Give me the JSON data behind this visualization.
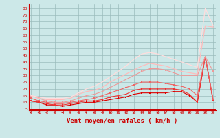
{
  "bg_color": "#cce8e8",
  "grid_color": "#9bbcbc",
  "xlabel": "Vent moyen/en rafales ( km/h )",
  "xlabel_color": "#cc0000",
  "xlabel_fontsize": 6.5,
  "ylim": [
    4,
    83
  ],
  "xlim": [
    0,
    23
  ],
  "series": [
    {
      "color": "#dd0000",
      "linewidth": 0.8,
      "marker": "s",
      "markersize": 1.5,
      "data": [
        11,
        10,
        8,
        8,
        7,
        8,
        9,
        10,
        10,
        11,
        12,
        13,
        14,
        16,
        17,
        17,
        17,
        17,
        18,
        18,
        15,
        10,
        44,
        11
      ]
    },
    {
      "color": "#ee3333",
      "linewidth": 0.8,
      "marker": "s",
      "markersize": 1.5,
      "data": [
        11,
        10,
        9,
        8,
        8,
        9,
        10,
        11,
        11,
        12,
        14,
        15,
        16,
        19,
        20,
        20,
        20,
        20,
        20,
        19,
        16,
        10,
        44,
        11
      ]
    },
    {
      "color": "#ee6666",
      "linewidth": 0.8,
      "marker": "s",
      "markersize": 1.5,
      "data": [
        13,
        11,
        10,
        9,
        9,
        10,
        11,
        12,
        13,
        15,
        17,
        19,
        21,
        23,
        25,
        25,
        25,
        24,
        23,
        22,
        20,
        15,
        44,
        12
      ]
    },
    {
      "color": "#ee9999",
      "linewidth": 0.8,
      "marker": "s",
      "markersize": 1.5,
      "data": [
        15,
        13,
        11,
        10,
        10,
        11,
        13,
        15,
        16,
        18,
        21,
        24,
        27,
        30,
        33,
        35,
        35,
        34,
        32,
        30,
        30,
        30,
        44,
        33
      ]
    },
    {
      "color": "#ffbbbb",
      "linewidth": 0.9,
      "marker": null,
      "markersize": 0,
      "data": [
        15,
        13,
        12,
        12,
        12,
        13,
        16,
        18,
        19,
        21,
        25,
        28,
        31,
        34,
        37,
        39,
        38,
        37,
        35,
        33,
        32,
        31,
        67,
        66
      ]
    },
    {
      "color": "#ffdddd",
      "linewidth": 0.9,
      "marker": null,
      "markersize": 0,
      "data": [
        15,
        14,
        13,
        13,
        13,
        14,
        17,
        20,
        22,
        25,
        29,
        33,
        37,
        42,
        46,
        47,
        46,
        44,
        42,
        40,
        38,
        36,
        80,
        67
      ]
    }
  ]
}
